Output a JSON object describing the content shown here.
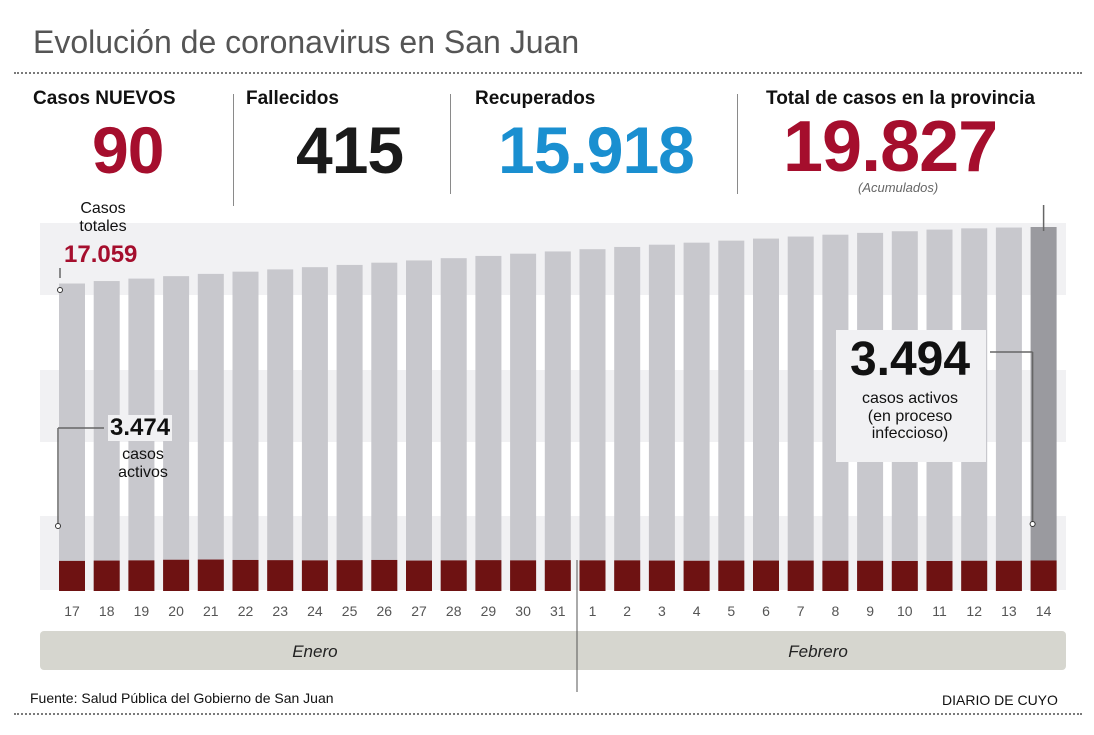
{
  "title": "Evolución de coronavirus en San Juan",
  "stats": {
    "new_label": "Casos NUEVOS",
    "new_value": "90",
    "deaths_label": "Fallecidos",
    "deaths_value": "415",
    "recovered_label": "Recuperados",
    "recovered_value": "15.918",
    "total_label": "Total de casos en la provincia",
    "total_value": "19.827",
    "total_note": "(Acumulados)"
  },
  "annotations": {
    "start_total_label_1": "Casos",
    "start_total_label_2": "totales",
    "start_total_value": "17.059",
    "start_active_value": "3.474",
    "start_active_label_1": "casos",
    "start_active_label_2": "activos",
    "end_active_value": "3.494",
    "end_active_label_1": "casos activos",
    "end_active_label_2": "(en proceso",
    "end_active_label_3": "infeccioso)"
  },
  "colors": {
    "total_bar": "#c8c8cd",
    "last_total_bar": "#9a9a9f",
    "active_bar": "#6e1212",
    "highlight_red": "#a50e2d",
    "recovered_blue": "#1a8fd0",
    "band": "#f1f1f3",
    "month_bar": "#d6d6cf"
  },
  "chart_data": {
    "type": "bar",
    "categories": [
      "17",
      "18",
      "19",
      "20",
      "21",
      "22",
      "23",
      "24",
      "25",
      "26",
      "27",
      "28",
      "29",
      "30",
      "31",
      "1",
      "2",
      "3",
      "4",
      "5",
      "6",
      "7",
      "8",
      "9",
      "10",
      "11",
      "12",
      "13",
      "14"
    ],
    "months": [
      {
        "name": "Enero",
        "days": 15
      },
      {
        "name": "Febrero",
        "days": 14
      }
    ],
    "series": [
      {
        "name": "Casos totales",
        "values": [
          17059,
          17180,
          17300,
          17420,
          17530,
          17640,
          17750,
          17860,
          17970,
          18080,
          18190,
          18300,
          18410,
          18520,
          18630,
          18740,
          18850,
          18960,
          19060,
          19160,
          19260,
          19360,
          19450,
          19540,
          19620,
          19700,
          19760,
          19800,
          19827
        ]
      },
      {
        "name": "Casos activos",
        "values": [
          3474,
          3490,
          3500,
          3530,
          3540,
          3520,
          3510,
          3500,
          3510,
          3520,
          3490,
          3500,
          3510,
          3500,
          3510,
          3500,
          3500,
          3490,
          3480,
          3490,
          3490,
          3490,
          3480,
          3480,
          3470,
          3470,
          3480,
          3480,
          3494
        ]
      }
    ],
    "source": "Fuente: Salud Pública del Gobierno de San Juan",
    "credit": "DIARIO DE CUYO"
  }
}
